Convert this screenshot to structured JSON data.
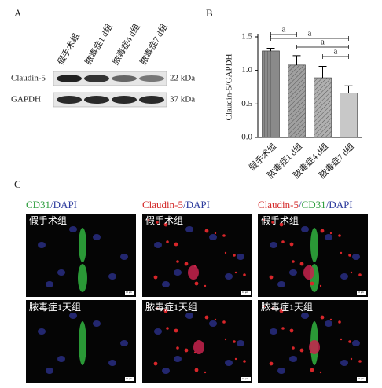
{
  "panel_labels": [
    "A",
    "B",
    "C"
  ],
  "blot": {
    "lanes": [
      "假手术组",
      "脓毒症1 d组",
      "脓毒症4 d组",
      "脓毒症7 d组"
    ],
    "bands": [
      {
        "name": "Claudin-5",
        "size": "22 kDa"
      },
      {
        "name": "GAPDH",
        "size": "37 kDa"
      }
    ]
  },
  "chart_data": {
    "type": "bar",
    "y_label": "Claudin-5/GAPDH",
    "categories": [
      "假手术组",
      "脓毒症1 d组",
      "脓毒症4 d组",
      "脓毒症7 d组"
    ],
    "values": [
      1.29,
      1.08,
      0.89,
      0.66
    ],
    "errors": [
      0.04,
      0.14,
      0.17,
      0.11
    ],
    "colors": [
      "#8a8a8a",
      "#a0a0a0",
      "#b0b0b0",
      "#c8c8c8"
    ],
    "ylim": [
      0,
      1.5
    ],
    "yticks": [
      {
        "value": 0,
        "label": "0.0"
      },
      0.5,
      {
        "value": 1,
        "label": "1.0"
      },
      1.5
    ],
    "annotations": [
      "a",
      "a",
      "a",
      "a"
    ]
  },
  "images": {
    "columns": [
      [
        {
          "text": "CD31",
          "color": "#2e9e3e"
        },
        {
          "text": "/DAPI",
          "color": "#2b3a9c"
        }
      ],
      [
        {
          "text": "Claudin-5",
          "color": "#d42a2a"
        },
        {
          "text": "/DAPI",
          "color": "#2b3a9c"
        }
      ],
      [
        {
          "text": "Claudin-5",
          "color": "#d42a2a"
        },
        {
          "text": "/",
          "color": "#2b3a9c"
        },
        {
          "text": "CD31",
          "color": "#2e9e3e"
        },
        {
          "text": "/DAPI",
          "color": "#2b3a9c"
        }
      ]
    ],
    "rows": [
      "假手术组",
      "脓毒症1天组"
    ],
    "scale_bar": "10 μm"
  }
}
